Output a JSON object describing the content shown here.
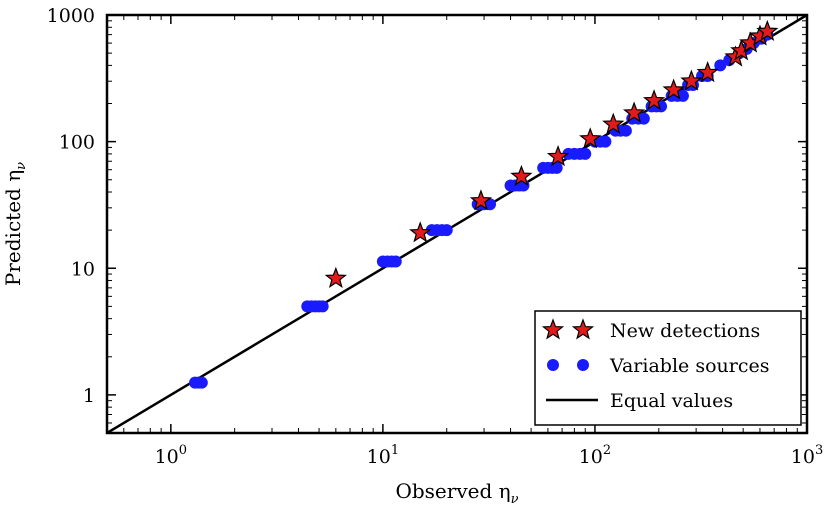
{
  "chart_data": {
    "type": "scatter",
    "xscale": "log",
    "yscale": "log",
    "xlim": [
      0.5,
      1000
    ],
    "ylim": [
      0.5,
      1000
    ],
    "xlabel": "Observed η",
    "xlabel_subscript": "ν",
    "ylabel": "Predicted η",
    "ylabel_subscript": "ν",
    "x_ticks": [
      {
        "value": 1,
        "base": "10",
        "exp": "0"
      },
      {
        "value": 10,
        "base": "10",
        "exp": "1"
      },
      {
        "value": 100,
        "base": "10",
        "exp": "2"
      },
      {
        "value": 1000,
        "base": "10",
        "exp": "3"
      }
    ],
    "y_ticks": [
      {
        "value": 1,
        "label": "1"
      },
      {
        "value": 10,
        "label": "10"
      },
      {
        "value": 100,
        "label": "100"
      },
      {
        "value": 1000,
        "label": "1000"
      }
    ],
    "legend_position": "bottom-right",
    "series": [
      {
        "name": "New detections",
        "marker": "star",
        "color": "#e31a1c",
        "points": [
          {
            "x": 6.0,
            "y": 8.3
          },
          {
            "x": 15.0,
            "y": 19.0
          },
          {
            "x": 29.0,
            "y": 34.0
          },
          {
            "x": 45.0,
            "y": 53.0
          },
          {
            "x": 67.0,
            "y": 76.0
          },
          {
            "x": 95.0,
            "y": 105.0
          },
          {
            "x": 122.0,
            "y": 137.0
          },
          {
            "x": 153.0,
            "y": 168.0
          },
          {
            "x": 190.0,
            "y": 210.0
          },
          {
            "x": 235.0,
            "y": 255.0
          },
          {
            "x": 285.0,
            "y": 300.0
          },
          {
            "x": 340.0,
            "y": 350.0
          },
          {
            "x": 460.0,
            "y": 465.0
          },
          {
            "x": 490.0,
            "y": 520.0
          },
          {
            "x": 540.0,
            "y": 600.0
          },
          {
            "x": 600.0,
            "y": 680.0
          },
          {
            "x": 650.0,
            "y": 740.0
          }
        ]
      },
      {
        "name": "Variable sources",
        "marker": "circle",
        "color": "#1a1aff",
        "points": [
          {
            "x": 1.3,
            "y": 1.25
          },
          {
            "x": 1.35,
            "y": 1.25
          },
          {
            "x": 1.4,
            "y": 1.25
          },
          {
            "x": 4.4,
            "y": 5.0
          },
          {
            "x": 4.6,
            "y": 5.0
          },
          {
            "x": 4.8,
            "y": 5.0
          },
          {
            "x": 5.0,
            "y": 5.0
          },
          {
            "x": 5.2,
            "y": 5.0
          },
          {
            "x": 10.0,
            "y": 11.3
          },
          {
            "x": 10.5,
            "y": 11.3
          },
          {
            "x": 11.0,
            "y": 11.3
          },
          {
            "x": 11.5,
            "y": 11.3
          },
          {
            "x": 17.0,
            "y": 20.0
          },
          {
            "x": 18.0,
            "y": 20.0
          },
          {
            "x": 19.0,
            "y": 20.0
          },
          {
            "x": 20.0,
            "y": 20.0
          },
          {
            "x": 28.0,
            "y": 32.0
          },
          {
            "x": 30.0,
            "y": 32.0
          },
          {
            "x": 32.0,
            "y": 32.0
          },
          {
            "x": 40.0,
            "y": 45.0
          },
          {
            "x": 42.0,
            "y": 45.0
          },
          {
            "x": 44.0,
            "y": 45.0
          },
          {
            "x": 46.0,
            "y": 45.0
          },
          {
            "x": 57.0,
            "y": 62.0
          },
          {
            "x": 60.0,
            "y": 62.0
          },
          {
            "x": 63.0,
            "y": 62.0
          },
          {
            "x": 66.0,
            "y": 62.0
          },
          {
            "x": 75.0,
            "y": 80.0
          },
          {
            "x": 80.0,
            "y": 80.0
          },
          {
            "x": 85.0,
            "y": 80.0
          },
          {
            "x": 90.0,
            "y": 80.0
          },
          {
            "x": 100.0,
            "y": 100.0
          },
          {
            "x": 106.0,
            "y": 100.0
          },
          {
            "x": 112.0,
            "y": 100.0
          },
          {
            "x": 125.0,
            "y": 122.0
          },
          {
            "x": 132.0,
            "y": 122.0
          },
          {
            "x": 140.0,
            "y": 122.0
          },
          {
            "x": 150.0,
            "y": 152.0
          },
          {
            "x": 160.0,
            "y": 152.0
          },
          {
            "x": 170.0,
            "y": 152.0
          },
          {
            "x": 185.0,
            "y": 190.0
          },
          {
            "x": 195.0,
            "y": 190.0
          },
          {
            "x": 205.0,
            "y": 190.0
          },
          {
            "x": 230.0,
            "y": 230.0
          },
          {
            "x": 245.0,
            "y": 230.0
          },
          {
            "x": 260.0,
            "y": 230.0
          },
          {
            "x": 275.0,
            "y": 280.0
          },
          {
            "x": 290.0,
            "y": 280.0
          },
          {
            "x": 320.0,
            "y": 330.0
          },
          {
            "x": 340.0,
            "y": 330.0
          },
          {
            "x": 390.0,
            "y": 400.0
          },
          {
            "x": 430.0,
            "y": 440.0
          },
          {
            "x": 480.0,
            "y": 500.0
          },
          {
            "x": 520.0,
            "y": 540.0
          },
          {
            "x": 560.0,
            "y": 600.0
          },
          {
            "x": 610.0,
            "y": 650.0
          },
          {
            "x": 650.0,
            "y": 700.0
          }
        ]
      },
      {
        "name": "Equal values",
        "marker": "line",
        "color": "#000000",
        "points": [
          {
            "x": 0.5,
            "y": 0.5
          },
          {
            "x": 1000,
            "y": 1000
          }
        ]
      }
    ]
  }
}
